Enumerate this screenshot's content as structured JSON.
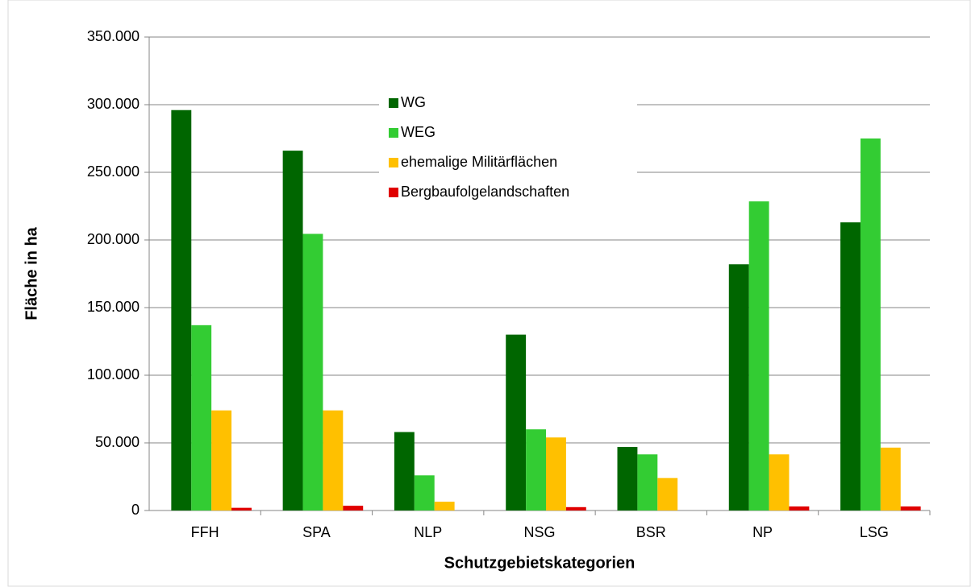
{
  "chart_data": {
    "type": "bar",
    "x_label": "Schutzgebietskategorien",
    "y_label": "Fläche in ha",
    "categories": [
      "FFH",
      "SPA",
      "NLP",
      "NSG",
      "BSR",
      "NP",
      "LSG"
    ],
    "series": [
      {
        "name": "WG",
        "color": "#006600",
        "values": [
          296000,
          266000,
          58000,
          130000,
          47000,
          182000,
          213000
        ]
      },
      {
        "name": "WEG",
        "color": "#33cc33",
        "values": [
          137000,
          204500,
          26000,
          60000,
          41500,
          228500,
          275000
        ]
      },
      {
        "name": "ehemalige Militärflächen",
        "color": "#ffc000",
        "values": [
          74000,
          74000,
          6500,
          54000,
          24000,
          41500,
          46500
        ]
      },
      {
        "name": "Bergbaufolgelandschaften",
        "color": "#e00000",
        "values": [
          2000,
          3500,
          0,
          2500,
          0,
          3000,
          3000
        ]
      }
    ],
    "ylim": [
      0,
      350000
    ],
    "yticks": [
      0,
      {
        "value": 50000,
        "label": "50.000"
      },
      {
        "value": 100000,
        "label": "100.000"
      },
      {
        "value": 150000,
        "label": "150.000"
      },
      {
        "value": 200000,
        "label": "200.000"
      },
      {
        "value": 250000,
        "label": "250.000"
      },
      {
        "value": 300000,
        "label": "300.000"
      },
      {
        "value": 350000,
        "label": "350.000"
      }
    ],
    "grid": true,
    "legend": "top"
  }
}
